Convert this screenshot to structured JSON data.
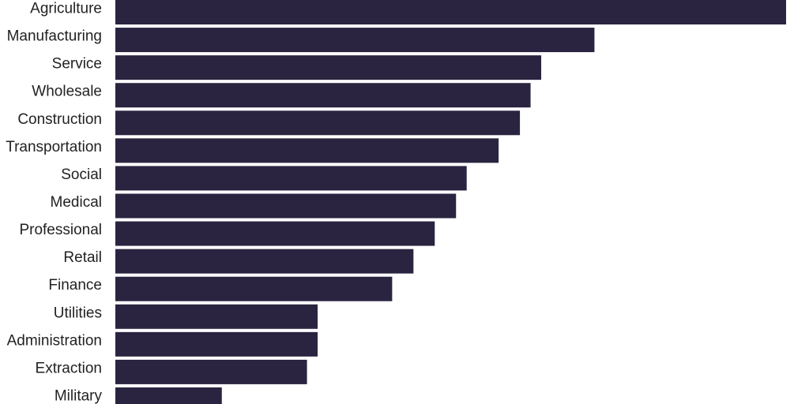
{
  "chart_data": {
    "type": "bar",
    "orientation": "horizontal",
    "categories": [
      "Agriculture",
      "Manufacturing",
      "Service",
      "Wholesale",
      "Construction",
      "Transportation",
      "Social",
      "Medical",
      "Professional",
      "Retail",
      "Finance",
      "Utilities",
      "Administration",
      "Extraction",
      "Military"
    ],
    "values": [
      63,
      45,
      40,
      39,
      38,
      36,
      33,
      32,
      30,
      28,
      26,
      19,
      19,
      18,
      10
    ],
    "xlim": [
      0,
      63
    ],
    "bar_color": "#2a2440",
    "grid": false,
    "legend": "none"
  }
}
